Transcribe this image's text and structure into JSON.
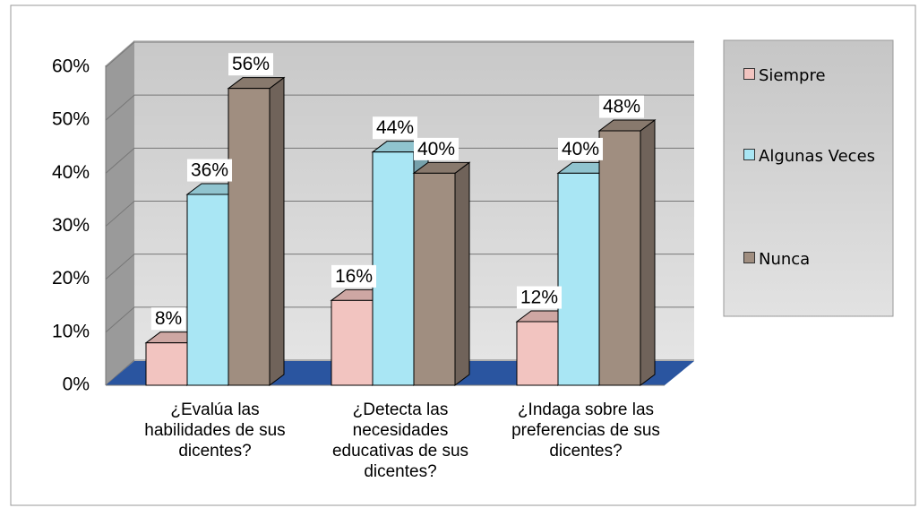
{
  "chart_data": {
    "type": "bar3d",
    "categories": [
      "¿Evalúa las habilidades de sus dicentes?",
      "¿Detecta las necesidades educativas de sus dicentes?",
      "¿Indaga sobre las preferencias de sus dicentes?"
    ],
    "series": [
      {
        "name": "Siempre",
        "color": "#f2c4c0",
        "values": [
          8,
          16,
          12
        ],
        "value_labels": [
          "8%",
          "16%",
          "12%"
        ]
      },
      {
        "name": "Algunas Veces",
        "color": "#a9e6f4",
        "values": [
          36,
          44,
          40
        ],
        "value_labels": [
          "36%",
          "44%",
          "40%"
        ]
      },
      {
        "name": "Nunca",
        "color": "#a08e80",
        "values": [
          56,
          40,
          48
        ],
        "value_labels": [
          "56%",
          "40%",
          "48%"
        ]
      }
    ],
    "ylim": [
      0,
      60
    ],
    "yticks": [
      {
        "value": 0,
        "label": "0%"
      },
      {
        "value": 10,
        "label": "10%"
      },
      {
        "value": 20,
        "label": "20%"
      },
      {
        "value": 30,
        "label": "30%"
      },
      {
        "value": 40,
        "label": "40%"
      },
      {
        "value": 50,
        "label": "50%"
      },
      {
        "value": 60,
        "label": "60%"
      }
    ],
    "grid": true,
    "legend": "right"
  }
}
